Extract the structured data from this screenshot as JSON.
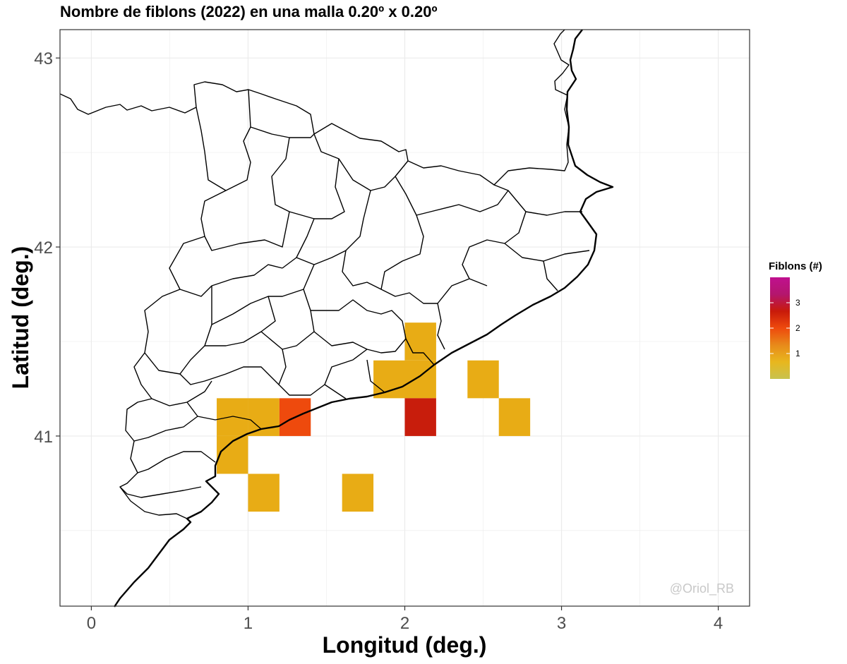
{
  "title": "Nombre de fiblons (2022) en una malla 0.20º x 0.20º",
  "watermark": "@Oriol_RB",
  "chart_data": {
    "type": "heatmap",
    "title": "Nombre de fiblons (2022) en una malla 0.20º x 0.20º",
    "xlabel": "Longitud (deg.)",
    "ylabel": "Latitud (deg.)",
    "xlim": [
      -0.2,
      4.2
    ],
    "ylim": [
      40.1,
      43.15
    ],
    "x_ticks": [
      "0",
      "1",
      "2",
      "3",
      "4"
    ],
    "x_tick_values": [
      0,
      1,
      2,
      3,
      4
    ],
    "y_ticks": [
      "41",
      "42",
      "43"
    ],
    "y_tick_values": [
      41,
      42,
      43
    ],
    "grid": true,
    "cell_size_deg": 0.2,
    "cells": [
      {
        "lon_min": 0.8,
        "lat_min": 41.0,
        "value": 1
      },
      {
        "lon_min": 1.0,
        "lat_min": 41.0,
        "value": 1
      },
      {
        "lon_min": 1.2,
        "lat_min": 41.0,
        "value": 2
      },
      {
        "lon_min": 0.8,
        "lat_min": 40.8,
        "value": 1
      },
      {
        "lon_min": 1.0,
        "lat_min": 40.6,
        "value": 1
      },
      {
        "lon_min": 1.6,
        "lat_min": 40.6,
        "value": 1
      },
      {
        "lon_min": 1.8,
        "lat_min": 41.2,
        "value": 1
      },
      {
        "lon_min": 2.0,
        "lat_min": 41.2,
        "value": 1
      },
      {
        "lon_min": 2.0,
        "lat_min": 41.4,
        "value": 1
      },
      {
        "lon_min": 2.0,
        "lat_min": 41.0,
        "value": 3
      },
      {
        "lon_min": 2.4,
        "lat_min": 41.2,
        "value": 1
      },
      {
        "lon_min": 2.6,
        "lat_min": 41.0,
        "value": 1
      }
    ],
    "legend": {
      "title": "Fiblons (#)",
      "position": "right",
      "breaks": [
        "1",
        "2",
        "3"
      ],
      "break_values": [
        1,
        2,
        3
      ],
      "range": [
        0,
        4
      ],
      "colors": [
        "#c8c24e",
        "#e8b71e",
        "#e88a1a",
        "#ee4a0d",
        "#c81a0a",
        "#b4166e",
        "#c0108f"
      ]
    },
    "cell_colors": {
      "1": "#e8ac15",
      "2": "#ee4a0d",
      "3": "#c81d0c"
    }
  }
}
